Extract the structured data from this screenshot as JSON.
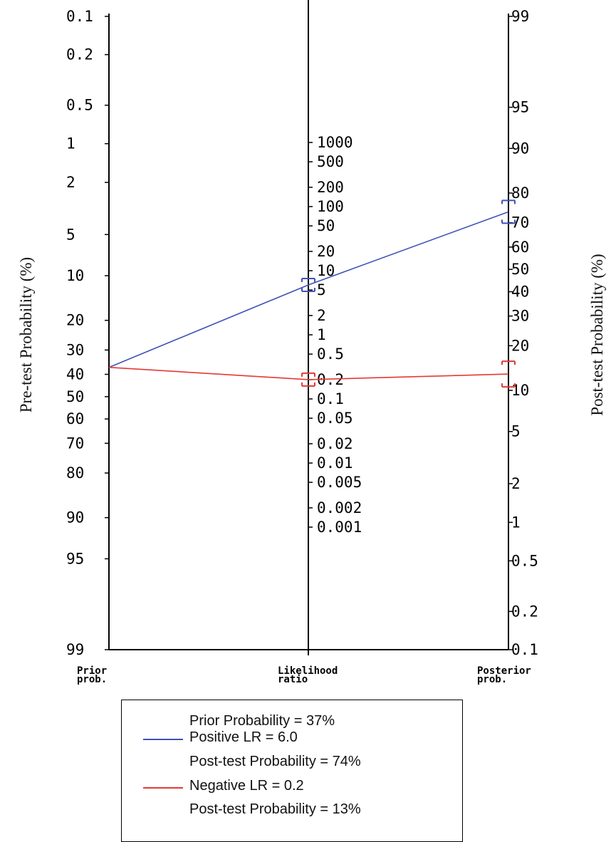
{
  "chart_data": {
    "type": "nomogram",
    "title": "",
    "y_left_label": "Pre-test Probability (%)",
    "y_right_label": "Post-test Probability (%)",
    "axes": {
      "prior": {
        "caption_lines": [
          "Prior",
          "prob."
        ],
        "ticks": [
          "0.1",
          "0.2",
          "0.5",
          "1",
          "2",
          "5",
          "10",
          "20",
          "30",
          "40",
          "50",
          "60",
          "70",
          "80",
          "90",
          "95",
          "99"
        ]
      },
      "likelihood_ratio": {
        "caption_lines": [
          "Likelihood",
          "ratio"
        ],
        "ticks": [
          "1000",
          "500",
          "200",
          "100",
          "50",
          "20",
          "10",
          "5",
          "2",
          "1",
          "0.5",
          "0.2",
          "0.1",
          "0.05",
          "0.02",
          "0.01",
          "0.005",
          "0.002",
          "0.001"
        ]
      },
      "posterior": {
        "caption_lines": [
          "Posterior",
          "prob."
        ],
        "ticks": [
          "99",
          "95",
          "90",
          "80",
          "70",
          "60",
          "50",
          "40",
          "30",
          "20",
          "10",
          "5",
          "2",
          "1",
          "0.5",
          "0.2",
          "0.1"
        ]
      }
    },
    "series": [
      {
        "name": "Positive LR = 6.0",
        "color": "#3f51b5",
        "prior_pct": 37,
        "lr": 6.0,
        "posterior_pct": 74
      },
      {
        "name": "Negative LR = 0.2",
        "color": "#e53935",
        "prior_pct": 37,
        "lr": 0.2,
        "posterior_pct": 13
      }
    ]
  },
  "legend": {
    "prior": "Prior Probability = 37%",
    "positive_lr": "Positive LR = 6.0",
    "positive_post": "Post-test Probability = 74%",
    "negative_lr": "Negative LR = 0.2",
    "negative_post": "Post-test Probability = 13%",
    "positive_color": "#3f51b5",
    "negative_color": "#e53935"
  }
}
